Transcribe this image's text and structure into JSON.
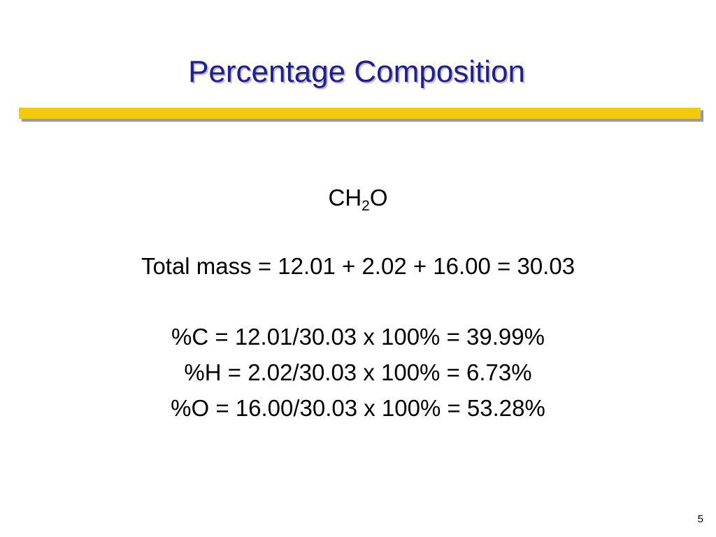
{
  "slide": {
    "title": "Percentage Composition",
    "formula": {
      "prefix": "CH",
      "subscript": "2",
      "suffix": "O"
    },
    "total_mass_line": "Total mass = 12.01 + 2.02 + 16.00 = 30.03",
    "percent_lines": [
      "%C = 12.01/30.03 x 100% = 39.99%",
      "%H = 2.02/30.03 x 100% = 6.73%",
      "%O = 16.00/30.03 x 100% = 53.28%"
    ],
    "page_number": "5"
  },
  "colors": {
    "title": "#1f1f8f",
    "rule": "#f2cc0c",
    "rule_shadow": "#9a9a9a",
    "background": "#ffffff"
  }
}
